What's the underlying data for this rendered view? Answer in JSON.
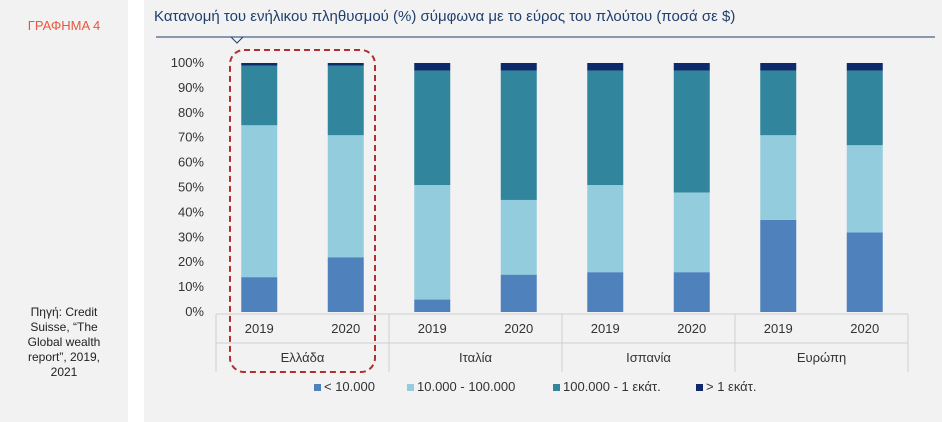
{
  "sidebar": {
    "label": "ΓΡΑΦΗΜΑ 4",
    "source_lines": [
      "Πηγή: Credit",
      "Suisse, “The",
      "Global wealth",
      "report”, 2019,",
      "2021"
    ]
  },
  "chart_data": {
    "type": "bar",
    "stacked": true,
    "title": "Κατανομή του ενήλικου πληθυσμού (%) σύμφωνα με το εύρος του πλούτου (ποσά σε $)",
    "groups": [
      "Ελλάδα",
      "Ιταλία",
      "Ισπανία",
      "Ευρώπη"
    ],
    "categories": [
      "2019",
      "2020",
      "2019",
      "2020",
      "2019",
      "2020",
      "2019",
      "2020"
    ],
    "ylim": [
      0,
      100
    ],
    "yticks": [
      "0%",
      "10%",
      "20%",
      "30%",
      "40%",
      "50%",
      "60%",
      "70%",
      "80%",
      "90%",
      "100%"
    ],
    "series": [
      {
        "name": "< 10.000",
        "color": "#4f81bd",
        "values": [
          14,
          22,
          5,
          15,
          16,
          16,
          37,
          32
        ]
      },
      {
        "name": "10.000 - 100.000",
        "color": "#93cddd",
        "values": [
          61,
          49,
          46,
          30,
          35,
          32,
          34,
          35
        ]
      },
      {
        "name": "100.000 - 1 εκάτ.",
        "color": "#31859c",
        "values": [
          24,
          28,
          46,
          52,
          46,
          49,
          26,
          30
        ]
      },
      {
        "name": "> 1 εκάτ.",
        "color": "#0f2a6b",
        "values": [
          1,
          1,
          3,
          3,
          3,
          3,
          3,
          3
        ]
      }
    ],
    "highlight_group": "Ελλάδα",
    "legend": "bottom",
    "grid": false
  }
}
